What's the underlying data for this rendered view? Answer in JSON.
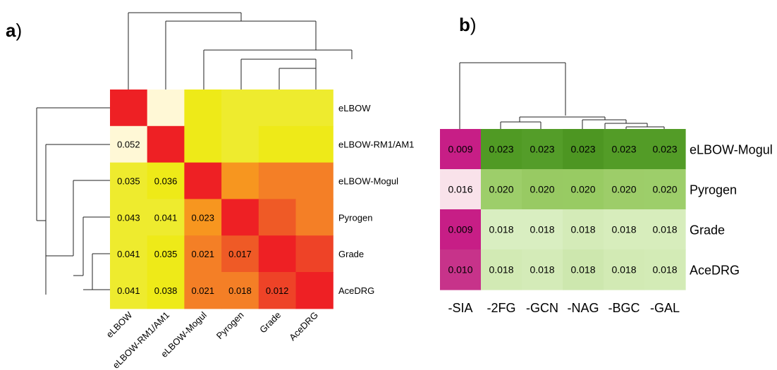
{
  "figure": {
    "panel_a_letter": "a",
    "panel_b_letter": "b",
    "paren": ")"
  },
  "chart_data": [
    {
      "type": "heatmap",
      "panel": "a",
      "rows": [
        "eLBOW",
        "eLBOW-RM1/AM1",
        "eLBOW-Mogul",
        "Pyrogen",
        "Grade",
        "AceDRG"
      ],
      "columns": [
        "eLBOW",
        "eLBOW-RM1/AM1",
        "eLBOW-Mogul",
        "Pyrogen",
        "Grade",
        "AceDRG"
      ],
      "labels": [
        [
          null,
          null,
          null,
          null,
          null,
          null
        ],
        [
          "0.052",
          null,
          null,
          null,
          null,
          null
        ],
        [
          "0.035",
          "0.036",
          null,
          null,
          null,
          null
        ],
        [
          "0.043",
          "0.041",
          "0.023",
          null,
          null,
          null
        ],
        [
          "0.041",
          "0.035",
          "0.021",
          "0.017",
          null,
          null
        ],
        [
          "0.041",
          "0.038",
          "0.021",
          "0.018",
          "0.012",
          null
        ]
      ],
      "colors": [
        [
          "#ee2024",
          "#fff8d6",
          "#eeea18",
          "#eeeb2e",
          "#eeeb2e",
          "#eeeb2e"
        ],
        [
          "#fff8d6",
          "#ee2024",
          "#eeea18",
          "#eeeb2e",
          "#eeea18",
          "#eeea18"
        ],
        [
          "#eeeb2e",
          "#eeea18",
          "#ee2024",
          "#f7961f",
          "#f47f26",
          "#f47f26"
        ],
        [
          "#eeeb2e",
          "#eeeb2e",
          "#f7961f",
          "#ee2024",
          "#ef5a26",
          "#f47f26"
        ],
        [
          "#eeeb2e",
          "#eeea18",
          "#f47f26",
          "#ef5a26",
          "#ee2024",
          "#ee4327"
        ],
        [
          "#eeeb2e",
          "#eeea18",
          "#f47f26",
          "#f47f26",
          "#ee4327",
          "#ee2024"
        ]
      ],
      "grid": false,
      "legend": "none"
    },
    {
      "type": "heatmap",
      "panel": "b",
      "rows": [
        "eLBOW-Mogul",
        "Pyrogen",
        "Grade",
        "AceDRG"
      ],
      "columns": [
        "-SIA",
        "-2FG",
        "-GCN",
        "-NAG",
        "-BGC",
        "-GAL"
      ],
      "values": [
        [
          0.009,
          0.023,
          0.023,
          0.023,
          0.023,
          0.023
        ],
        [
          0.016,
          0.02,
          0.02,
          0.02,
          0.02,
          0.02
        ],
        [
          0.009,
          0.018,
          0.018,
          0.018,
          0.018,
          0.018
        ],
        [
          0.01,
          0.018,
          0.018,
          0.018,
          0.018,
          0.018
        ]
      ],
      "labels": [
        [
          "0.009",
          "0.023",
          "0.023",
          "0.023",
          "0.023",
          "0.023"
        ],
        [
          "0.016",
          "0.020",
          "0.020",
          "0.020",
          "0.020",
          "0.020"
        ],
        [
          "0.009",
          "0.018",
          "0.018",
          "0.018",
          "0.018",
          "0.018"
        ],
        [
          "0.010",
          "0.018",
          "0.018",
          "0.018",
          "0.018",
          "0.018"
        ]
      ],
      "colors": [
        [
          "#c71e86",
          "#509a24",
          "#549d29",
          "#4d9622",
          "#539c27",
          "#539c27"
        ],
        [
          "#f9e2ea",
          "#9dce6a",
          "#98ca63",
          "#98cb63",
          "#9dcd69",
          "#9dce6a"
        ],
        [
          "#c71e86",
          "#d9eec1",
          "#d9eec1",
          "#d4ebb8",
          "#d7edbc",
          "#d7edbc"
        ],
        [
          "#c7338a",
          "#d2eab4",
          "#d4ebb8",
          "#cde7ae",
          "#d2eab4",
          "#d3ebb6"
        ]
      ],
      "grid": false,
      "legend": "none"
    }
  ]
}
